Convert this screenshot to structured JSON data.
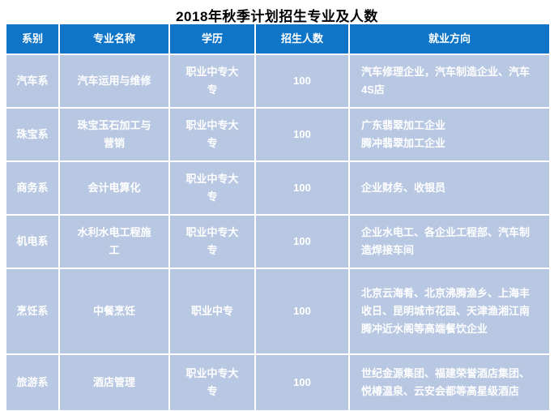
{
  "title": "2018年秋季计划招生专业及人数",
  "colors": {
    "header_bg": "#0E75C8",
    "row_bg": "#B8C7E2",
    "header_text": "#FFFFFF",
    "body_text": "#FFFFFF",
    "title_text": "#000000"
  },
  "table": {
    "headers": {
      "dept": "系别",
      "major": "专业名称",
      "degree": "学历",
      "count": "招生人数",
      "employment": "就业方向"
    },
    "rows": [
      {
        "dept": "汽车系",
        "major": "汽车运用与维修",
        "degree": "职业中专大专",
        "count": "100",
        "employment": "汽车修理企业，汽车制造企业、汽车4S店"
      },
      {
        "dept": "珠宝系",
        "major": "珠宝玉石加工与营销",
        "degree": "职业中专大专",
        "count": "100",
        "employment": "广东翡翠加工企业\n腾冲翡翠加工企业"
      },
      {
        "dept": "商务系",
        "major": "会计电算化",
        "degree": "职业中专大专",
        "count": "100",
        "employment": "企业财务、收银员"
      },
      {
        "dept": "机电系",
        "major": "水利水电工程施工",
        "degree": "职业中专大专",
        "count": "100",
        "employment": "企业水电工、各企业工程部、汽车制造焊接车间"
      },
      {
        "dept": "烹饪系",
        "major": "中餐烹饪",
        "degree": "职业中专",
        "count": "100",
        "employment": "北京云海肴、北京沸腾渔乡、上海丰收日、昆明城市花园、天津渔湘江南\n腾冲近水阁等高端餐饮企业"
      },
      {
        "dept": "旅游系",
        "major": "酒店管理",
        "degree": "职业中专大专",
        "count": "100",
        "employment": "世纪金源集团、福建荣誉酒店集团、悦椿温泉、云安会都等高星级酒店"
      }
    ]
  }
}
